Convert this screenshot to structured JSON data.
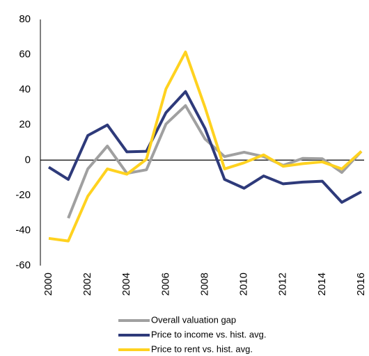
{
  "chart_data": {
    "type": "line",
    "x": [
      2000,
      2001,
      2002,
      2003,
      2004,
      2005,
      2006,
      2007,
      2008,
      2009,
      2010,
      2011,
      2012,
      2013,
      2014,
      2015,
      2016
    ],
    "series": [
      {
        "name": "Overall valuation gap",
        "color": "#a0a0a0",
        "values": [
          null,
          -33,
          -5,
          8,
          -7.5,
          -5.5,
          20.5,
          31,
          12,
          2,
          4.5,
          2,
          -3,
          1,
          0.8,
          -7,
          5
        ]
      },
      {
        "name": "Price to income vs. hist. avg.",
        "color": "#2e3a7a",
        "values": [
          -4,
          -11,
          14,
          20,
          4.7,
          5,
          27,
          39,
          18,
          -11,
          -16,
          -9,
          -13.5,
          -12.5,
          -12,
          -24,
          -18
        ]
      },
      {
        "name": "Price to rent vs. hist. avg.",
        "color": "#ffd21f",
        "values": [
          -44.5,
          -46,
          -20.5,
          -5,
          -8,
          0.5,
          40.5,
          61.5,
          30,
          -5,
          -1.5,
          3,
          -3.5,
          -2,
          -1,
          -5,
          5
        ]
      }
    ],
    "xlim": [
      2000,
      2016
    ],
    "xticks": [
      2000,
      2002,
      2004,
      2006,
      2008,
      2010,
      2012,
      2014,
      2016
    ],
    "ylim": [
      -60,
      80
    ],
    "yticks": [
      -60,
      -40,
      -20,
      0,
      20,
      40,
      60,
      80
    ],
    "zero_line": true,
    "legend": "bottom"
  }
}
